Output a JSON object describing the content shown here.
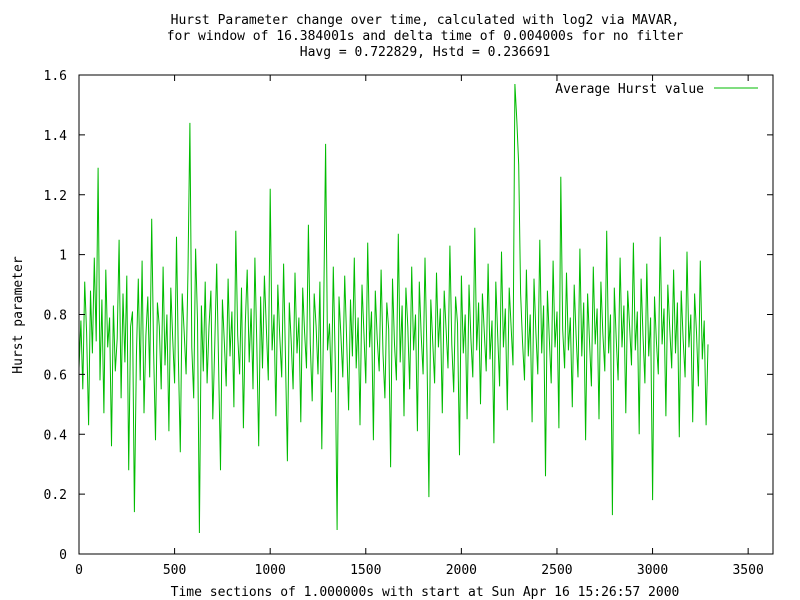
{
  "chart_data": {
    "type": "line",
    "title_lines": [
      "Hurst Parameter change over time, calculated with log2 via MAVAR,",
      "for window of 16.384001s and delta time of 0.004000s for no filter",
      "Havg = 0.722829, Hstd = 0.236691"
    ],
    "xlabel": "Time sections of 1.000000s with start at Sun Apr 16 15:26:57 2000",
    "ylabel": "Hurst parameter",
    "xlim": [
      0,
      3630
    ],
    "ylim": [
      0,
      1.6
    ],
    "x_ticks": [
      0,
      500,
      1000,
      1500,
      2000,
      2500,
      3000,
      3500
    ],
    "x_tick_labels": [
      "0",
      "500",
      "1000",
      "1500",
      "2000",
      "2500",
      "3000",
      "3500"
    ],
    "y_ticks": [
      0,
      0.2,
      0.4,
      0.6,
      0.8,
      1.0,
      1.2,
      1.4,
      1.6
    ],
    "y_tick_labels": [
      "0",
      "0.2",
      "0.4",
      "0.6",
      "0.8",
      "1",
      "1.2",
      "1.4",
      "1.6"
    ],
    "grid": false,
    "legend_position": "top-right",
    "series": [
      {
        "name": "Average Hurst value",
        "color": "#00bb00",
        "mean": 0.722829,
        "std": 0.236691,
        "sample_step": 10,
        "values": [
          0.62,
          0.78,
          0.55,
          0.91,
          0.74,
          0.43,
          0.88,
          0.67,
          0.99,
          0.71,
          1.29,
          0.58,
          0.85,
          0.47,
          0.95,
          0.69,
          0.79,
          0.36,
          0.83,
          0.61,
          0.72,
          1.05,
          0.52,
          0.87,
          0.64,
          0.93,
          0.28,
          0.76,
          0.81,
          0.14,
          0.66,
          0.92,
          0.58,
          0.98,
          0.47,
          0.73,
          0.86,
          0.59,
          1.12,
          0.68,
          0.38,
          0.84,
          0.76,
          0.55,
          0.96,
          0.63,
          0.8,
          0.41,
          0.89,
          0.72,
          0.57,
          1.06,
          0.65,
          0.34,
          0.87,
          0.74,
          0.6,
          0.95,
          1.44,
          0.69,
          0.52,
          1.02,
          0.78,
          0.07,
          0.83,
          0.61,
          0.91,
          0.57,
          0.76,
          0.88,
          0.45,
          0.69,
          0.97,
          0.63,
          0.28,
          0.85,
          0.71,
          0.56,
          0.92,
          0.66,
          0.81,
          0.49,
          1.08,
          0.73,
          0.6,
          0.89,
          0.42,
          0.77,
          0.95,
          0.64,
          0.82,
          0.55,
          0.99,
          0.7,
          0.36,
          0.86,
          0.62,
          0.93,
          0.75,
          0.58,
          1.22,
          0.68,
          0.8,
          0.46,
          0.9,
          0.73,
          0.59,
          0.97,
          0.65,
          0.31,
          0.84,
          0.71,
          0.55,
          0.94,
          0.67,
          0.79,
          0.44,
          0.89,
          0.74,
          0.62,
          1.1,
          0.7,
          0.51,
          0.87,
          0.76,
          0.6,
          0.91,
          0.35,
          0.82,
          1.37,
          0.68,
          0.77,
          0.54,
          0.96,
          0.65,
          0.08,
          0.86,
          0.73,
          0.59,
          0.93,
          0.71,
          0.48,
          0.85,
          0.66,
          0.99,
          0.62,
          0.79,
          0.43,
          0.9,
          0.74,
          0.57,
          1.04,
          0.69,
          0.81,
          0.38,
          0.88,
          0.72,
          0.61,
          0.95,
          0.67,
          0.52,
          0.84,
          0.75,
          0.29,
          0.92,
          0.7,
          0.58,
          1.07,
          0.64,
          0.83,
          0.46,
          0.89,
          0.76,
          0.55,
          0.96,
          0.68,
          0.8,
          0.41,
          0.91,
          0.73,
          0.6,
          0.99,
          0.66,
          0.19,
          0.85,
          0.71,
          0.57,
          0.94,
          0.69,
          0.82,
          0.47,
          0.88,
          0.75,
          0.62,
          1.03,
          0.7,
          0.54,
          0.86,
          0.77,
          0.33,
          0.93,
          0.67,
          0.8,
          0.45,
          0.9,
          0.72,
          0.59,
          1.09,
          0.68,
          0.84,
          0.5,
          0.87,
          0.74,
          0.61,
          0.97,
          0.65,
          0.78,
          0.37,
          0.91,
          0.73,
          0.56,
          1.01,
          0.69,
          0.82,
          0.48,
          0.89,
          0.76,
          0.63,
          1.57,
          1.45,
          1.3,
          0.87,
          0.71,
          0.58,
          0.95,
          0.66,
          0.8,
          0.44,
          0.92,
          0.74,
          0.6,
          1.05,
          0.67,
          0.83,
          0.26,
          0.88,
          0.72,
          0.57,
          0.98,
          0.69,
          0.81,
          0.42,
          1.26,
          0.75,
          0.62,
          0.94,
          0.68,
          0.79,
          0.49,
          0.9,
          0.73,
          0.59,
          1.02,
          0.66,
          0.84,
          0.38,
          0.87,
          0.71,
          0.56,
          0.96,
          0.7,
          0.82,
          0.45,
          0.91,
          0.74,
          0.61,
          1.08,
          0.67,
          0.8,
          0.13,
          0.89,
          0.72,
          0.58,
          0.99,
          0.69,
          0.83,
          0.47,
          0.88,
          0.76,
          0.63,
          1.04,
          0.68,
          0.81,
          0.4,
          0.92,
          0.73,
          0.57,
          0.97,
          0.66,
          0.79,
          0.18,
          0.86,
          0.71,
          0.6,
          1.06,
          0.7,
          0.82,
          0.46,
          0.9,
          0.75,
          0.62,
          0.95,
          0.67,
          0.84,
          0.39,
          0.88,
          0.72,
          0.59,
          1.01,
          0.69,
          0.8,
          0.44,
          0.87,
          0.74,
          0.56,
          0.98,
          0.65,
          0.78,
          0.43,
          0.7
        ]
      }
    ]
  }
}
